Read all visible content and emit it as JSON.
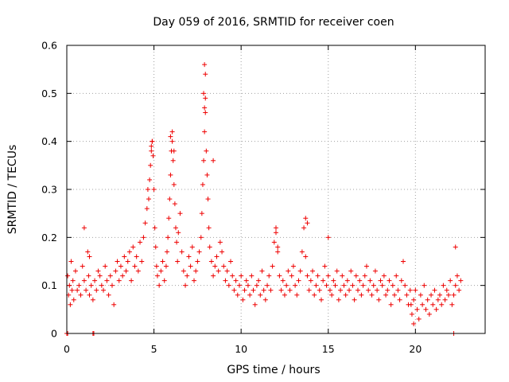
{
  "chart_data": {
    "type": "scatter",
    "title": "Day 059 of 2016, SRMTID for receiver coen",
    "xlabel": "GPS time / hours",
    "ylabel": "SRMTID / TECUs",
    "xlim": [
      0,
      24
    ],
    "ylim": [
      0,
      0.6
    ],
    "xticks": [
      0,
      5,
      10,
      15,
      20
    ],
    "yticks": [
      0,
      0.1,
      0.2,
      0.3,
      0.4,
      0.5,
      0.6
    ],
    "xtick_labels": [
      "0",
      "5",
      "10",
      "15",
      "20"
    ],
    "ytick_labels": [
      "0",
      "0.1",
      "0.2",
      "0.3",
      "0.4",
      "0.5",
      "0.6"
    ],
    "grid": true,
    "marker": "+",
    "color": "#ee0000",
    "series": [
      {
        "name": "SRMTID",
        "x": [
          0.05,
          0.1,
          0.15,
          0.2,
          0.25,
          0.3,
          0.35,
          0.4,
          0.5,
          0.6,
          0.7,
          0.8,
          0.9,
          1.0,
          1.1,
          1.2,
          1.25,
          1.3,
          1.4,
          1.5,
          1.6,
          1.7,
          1.8,
          1.9,
          2.0,
          2.1,
          2.2,
          2.3,
          2.4,
          2.5,
          2.6,
          2.7,
          2.8,
          2.9,
          3.0,
          3.1,
          3.2,
          3.3,
          3.4,
          3.5,
          3.6,
          3.7,
          3.8,
          3.9,
          4.0,
          4.1,
          4.2,
          4.3,
          4.4,
          4.5,
          4.6,
          4.65,
          4.7,
          4.75,
          4.8,
          4.85,
          4.9,
          4.95,
          5.0,
          5.05,
          5.1,
          5.15,
          5.2,
          5.3,
          5.4,
          5.5,
          5.6,
          5.7,
          5.75,
          5.8,
          5.85,
          5.9,
          5.95,
          6.0,
          6.05,
          6.1,
          6.15,
          6.2,
          6.25,
          6.3,
          6.35,
          6.4,
          6.5,
          6.6,
          6.7,
          6.8,
          6.9,
          7.0,
          7.1,
          7.2,
          7.3,
          7.4,
          7.5,
          7.6,
          7.7,
          7.75,
          7.8,
          7.85,
          7.9,
          7.95,
          8.0,
          8.05,
          8.1,
          8.15,
          8.2,
          8.3,
          8.4,
          8.5,
          8.6,
          8.7,
          8.8,
          8.9,
          9.0,
          9.1,
          9.2,
          9.3,
          9.4,
          9.5,
          9.6,
          9.7,
          9.8,
          9.9,
          10.0,
          10.1,
          10.2,
          10.3,
          10.4,
          10.5,
          10.6,
          10.7,
          10.8,
          10.9,
          11.0,
          11.1,
          11.2,
          11.3,
          11.4,
          11.5,
          11.6,
          11.7,
          11.8,
          11.9,
          12.0,
          12.1,
          12.2,
          12.3,
          12.4,
          12.5,
          12.6,
          12.7,
          12.8,
          12.9,
          13.0,
          13.1,
          13.2,
          13.3,
          13.4,
          13.5,
          13.6,
          13.7,
          13.8,
          13.9,
          14.0,
          14.1,
          14.2,
          14.3,
          14.4,
          14.5,
          14.6,
          14.7,
          14.8,
          14.9,
          15.0,
          15.1,
          15.2,
          15.3,
          15.4,
          15.5,
          15.6,
          15.7,
          15.8,
          15.9,
          16.0,
          16.1,
          16.2,
          16.3,
          16.4,
          16.5,
          16.6,
          16.7,
          16.8,
          16.9,
          17.0,
          17.1,
          17.2,
          17.3,
          17.4,
          17.5,
          17.6,
          17.7,
          17.8,
          17.9,
          18.0,
          18.1,
          18.2,
          18.3,
          18.4,
          18.5,
          18.6,
          18.7,
          18.8,
          18.9,
          19.0,
          19.1,
          19.2,
          19.3,
          19.4,
          19.5,
          19.6,
          19.7,
          19.8,
          19.9,
          20.0,
          20.1,
          20.2,
          20.3,
          20.4,
          20.5,
          20.6,
          20.7,
          20.8,
          20.9,
          21.0,
          21.1,
          21.2,
          21.3,
          21.4,
          21.5,
          21.6,
          21.7,
          21.8,
          21.9,
          22.0,
          22.1,
          22.2,
          22.3,
          22.4,
          22.5,
          22.6,
          0.0,
          0.05,
          1.5,
          1.55,
          22.2,
          1.0,
          1.3,
          4.85,
          4.9,
          5.95,
          6.05,
          6.15,
          7.85,
          7.9,
          7.95,
          7.95,
          7.9,
          8.4,
          12.0,
          12.1,
          13.7,
          13.8,
          15.0,
          19.75,
          19.9,
          22.3
        ],
        "y": [
          0.12,
          0.08,
          0.1,
          0.06,
          0.15,
          0.09,
          0.11,
          0.07,
          0.13,
          0.09,
          0.1,
          0.08,
          0.14,
          0.11,
          0.09,
          0.17,
          0.12,
          0.08,
          0.1,
          0.07,
          0.11,
          0.09,
          0.13,
          0.12,
          0.1,
          0.09,
          0.14,
          0.11,
          0.08,
          0.12,
          0.1,
          0.06,
          0.13,
          0.15,
          0.11,
          0.14,
          0.12,
          0.16,
          0.13,
          0.15,
          0.17,
          0.11,
          0.18,
          0.14,
          0.16,
          0.13,
          0.19,
          0.15,
          0.2,
          0.23,
          0.26,
          0.3,
          0.28,
          0.32,
          0.35,
          0.38,
          0.4,
          0.37,
          0.3,
          0.22,
          0.18,
          0.14,
          0.12,
          0.1,
          0.13,
          0.15,
          0.11,
          0.14,
          0.17,
          0.2,
          0.24,
          0.28,
          0.33,
          0.38,
          0.4,
          0.36,
          0.31,
          0.27,
          0.22,
          0.19,
          0.15,
          0.21,
          0.25,
          0.17,
          0.13,
          0.1,
          0.12,
          0.16,
          0.14,
          0.18,
          0.11,
          0.13,
          0.15,
          0.17,
          0.2,
          0.25,
          0.31,
          0.36,
          0.42,
          0.46,
          0.38,
          0.33,
          0.28,
          0.22,
          0.18,
          0.15,
          0.12,
          0.14,
          0.16,
          0.13,
          0.19,
          0.17,
          0.14,
          0.11,
          0.13,
          0.1,
          0.15,
          0.12,
          0.09,
          0.11,
          0.08,
          0.1,
          0.12,
          0.07,
          0.09,
          0.11,
          0.1,
          0.08,
          0.12,
          0.09,
          0.06,
          0.1,
          0.11,
          0.08,
          0.13,
          0.09,
          0.07,
          0.1,
          0.12,
          0.09,
          0.14,
          0.19,
          0.22,
          0.17,
          0.12,
          0.09,
          0.11,
          0.08,
          0.1,
          0.13,
          0.09,
          0.12,
          0.14,
          0.1,
          0.08,
          0.11,
          0.13,
          0.17,
          0.22,
          0.16,
          0.12,
          0.09,
          0.11,
          0.13,
          0.08,
          0.1,
          0.12,
          0.09,
          0.07,
          0.11,
          0.14,
          0.1,
          0.12,
          0.09,
          0.08,
          0.11,
          0.1,
          0.13,
          0.07,
          0.09,
          0.12,
          0.1,
          0.08,
          0.11,
          0.09,
          0.13,
          0.1,
          0.07,
          0.12,
          0.09,
          0.11,
          0.08,
          0.1,
          0.12,
          0.14,
          0.09,
          0.11,
          0.08,
          0.1,
          0.13,
          0.09,
          0.07,
          0.11,
          0.1,
          0.12,
          0.08,
          0.09,
          0.11,
          0.06,
          0.1,
          0.08,
          0.12,
          0.09,
          0.07,
          0.11,
          0.15,
          0.1,
          0.08,
          0.06,
          0.09,
          0.04,
          0.07,
          0.09,
          0.05,
          0.03,
          0.08,
          0.06,
          0.1,
          0.05,
          0.07,
          0.04,
          0.08,
          0.06,
          0.09,
          0.05,
          0.07,
          0.08,
          0.06,
          0.1,
          0.07,
          0.09,
          0.08,
          0.11,
          0.06,
          0.08,
          0.1,
          0.12,
          0.09,
          0.11,
          0.0,
          0.0,
          0.0,
          0.0,
          0.0,
          0.22,
          0.16,
          0.39,
          0.4,
          0.41,
          0.42,
          0.38,
          0.5,
          0.56,
          0.54,
          0.49,
          0.47,
          0.36,
          0.21,
          0.18,
          0.24,
          0.23,
          0.2,
          0.06,
          0.02,
          0.18
        ]
      }
    ]
  }
}
